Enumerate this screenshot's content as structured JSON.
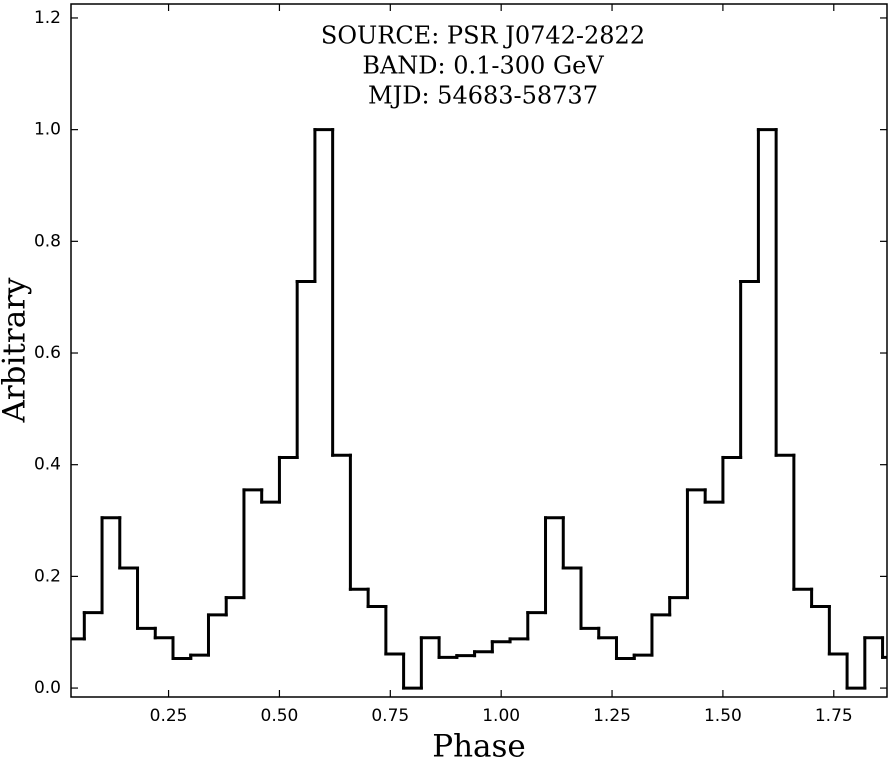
{
  "chart_data": {
    "type": "histogram",
    "title": [
      "SOURCE: PSR J0742-2822",
      "BAND: 0.1-300 GeV",
      "MJD: 54683-58737"
    ],
    "xlabel": "Phase",
    "ylabel": "Arbitrary",
    "bins": [
      0.02,
      0.06,
      0.1,
      0.14,
      0.18,
      0.22,
      0.26,
      0.3,
      0.34,
      0.38,
      0.42,
      0.46,
      0.5,
      0.54,
      0.58,
      0.62,
      0.66,
      0.7,
      0.74,
      0.78,
      0.82,
      0.86,
      0.9,
      0.94,
      0.98,
      1.02,
      1.06,
      1.1,
      1.14,
      1.18,
      1.22,
      1.26,
      1.3,
      1.34,
      1.38,
      1.42,
      1.46,
      1.5,
      1.54,
      1.58,
      1.62,
      1.66,
      1.7,
      1.74,
      1.78,
      1.82,
      1.86,
      1.9
    ],
    "counts": [
      0.088,
      0.135,
      0.305,
      0.215,
      0.107,
      0.09,
      0.053,
      0.059,
      0.131,
      0.162,
      0.355,
      0.333,
      0.413,
      0.728,
      1.0,
      0.417,
      0.177,
      0.146,
      0.061,
      0.0,
      0.09,
      0.055,
      0.058,
      0.065,
      0.083,
      0.088,
      0.135,
      0.305,
      0.215,
      0.107,
      0.09,
      0.053,
      0.059,
      0.131,
      0.162,
      0.355,
      0.333,
      0.413,
      0.728,
      1.0,
      0.417,
      0.177,
      0.146,
      0.061,
      0.0,
      0.09,
      0.055
    ],
    "color": "#000000",
    "xlim": [
      0.03,
      1.87
    ],
    "ylim": [
      -0.016,
      1.225
    ],
    "xticks": [
      0.25,
      {
        "value": 0.5,
        "label": "0.50"
      },
      0.75,
      {
        "value": 1.0,
        "label": "1.00"
      },
      1.25,
      {
        "value": 1.5,
        "label": "1.50"
      },
      1.75
    ],
    "yticks": [
      {
        "value": 0,
        "label": "0.0"
      },
      0.2,
      0.4,
      0.6,
      0.8,
      {
        "value": 1.0,
        "label": "1.0"
      },
      1.2
    ],
    "grid": false
  }
}
